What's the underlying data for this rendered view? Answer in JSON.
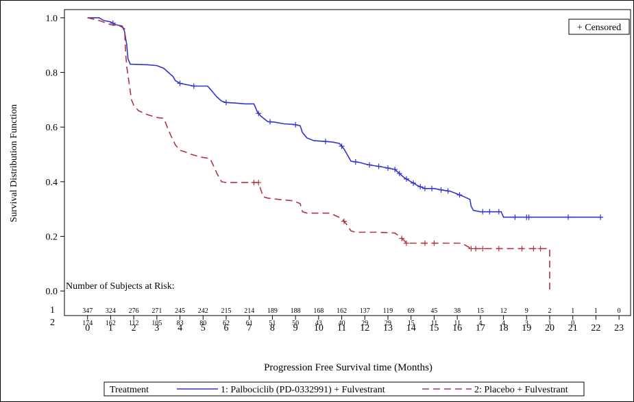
{
  "chart_data": {
    "type": "line",
    "title": "",
    "xlabel": "Progression Free Survival time (Months)",
    "ylabel": "Survival Distribution Function",
    "xlim": [
      -1,
      23.5
    ],
    "ylim": [
      -0.09,
      1.03
    ],
    "x_ticks": [
      "0",
      "1",
      "2",
      "3",
      "4",
      "5",
      "6",
      "7",
      "8",
      "9",
      "10",
      "11",
      "12",
      "13",
      "14",
      "15",
      "16",
      "17",
      "18",
      "19",
      "20",
      "21",
      "22",
      "23"
    ],
    "y_ticks": [
      "0.0",
      "0.2",
      "0.4",
      "0.6",
      "0.8",
      "1.0"
    ],
    "grid": false,
    "censored_legend": "+ Censored",
    "legend": {
      "title": "Treatment",
      "placement": "bottom",
      "items": [
        {
          "label": "1: Palbociclib (PD-0332991) + Fulvestrant",
          "color": "#3333cc",
          "style": "solid"
        },
        {
          "label": "2: Placebo + Fulvestrant",
          "color": "#b2323e",
          "style": "dashed"
        }
      ]
    },
    "series": [
      {
        "name": "1: Palbociclib (PD-0332991) + Fulvestrant",
        "color": "#3333cc",
        "dash": "solid",
        "points": [
          [
            0,
            1.0
          ],
          [
            0.5,
            1.0
          ],
          [
            0.7,
            0.99
          ],
          [
            1.0,
            0.985
          ],
          [
            1.2,
            0.975
          ],
          [
            1.5,
            0.97
          ],
          [
            1.6,
            0.95
          ],
          [
            1.7,
            0.9
          ],
          [
            1.75,
            0.85
          ],
          [
            1.85,
            0.83
          ],
          [
            2.6,
            0.828
          ],
          [
            3.0,
            0.825
          ],
          [
            3.3,
            0.815
          ],
          [
            3.5,
            0.8
          ],
          [
            3.7,
            0.785
          ],
          [
            3.8,
            0.77
          ],
          [
            4.0,
            0.76
          ],
          [
            4.3,
            0.755
          ],
          [
            4.6,
            0.75
          ],
          [
            5.2,
            0.75
          ],
          [
            5.4,
            0.73
          ],
          [
            5.6,
            0.71
          ],
          [
            5.8,
            0.695
          ],
          [
            6.0,
            0.69
          ],
          [
            6.4,
            0.688
          ],
          [
            6.8,
            0.685
          ],
          [
            7.2,
            0.685
          ],
          [
            7.35,
            0.655
          ],
          [
            7.5,
            0.64
          ],
          [
            7.8,
            0.62
          ],
          [
            8.1,
            0.618
          ],
          [
            8.5,
            0.612
          ],
          [
            8.9,
            0.61
          ],
          [
            9.2,
            0.605
          ],
          [
            9.3,
            0.58
          ],
          [
            9.5,
            0.56
          ],
          [
            9.8,
            0.55
          ],
          [
            10.2,
            0.548
          ],
          [
            10.6,
            0.545
          ],
          [
            10.9,
            0.54
          ],
          [
            11.1,
            0.52
          ],
          [
            11.3,
            0.49
          ],
          [
            11.4,
            0.475
          ],
          [
            11.8,
            0.47
          ],
          [
            12.0,
            0.465
          ],
          [
            12.3,
            0.46
          ],
          [
            12.7,
            0.455
          ],
          [
            13.0,
            0.45
          ],
          [
            13.3,
            0.445
          ],
          [
            13.5,
            0.43
          ],
          [
            13.7,
            0.415
          ],
          [
            13.9,
            0.405
          ],
          [
            14.1,
            0.395
          ],
          [
            14.3,
            0.385
          ],
          [
            14.6,
            0.375
          ],
          [
            15.0,
            0.375
          ],
          [
            15.3,
            0.37
          ],
          [
            15.7,
            0.365
          ],
          [
            16.0,
            0.355
          ],
          [
            16.3,
            0.345
          ],
          [
            16.55,
            0.335
          ],
          [
            16.6,
            0.31
          ],
          [
            16.7,
            0.295
          ],
          [
            17.0,
            0.29
          ],
          [
            17.9,
            0.29
          ],
          [
            18.0,
            0.27
          ],
          [
            22.2,
            0.27
          ]
        ],
        "censored": [
          1.1,
          4.0,
          4.6,
          6.0,
          7.4,
          7.9,
          9.0,
          10.3,
          11.0,
          11.6,
          12.2,
          12.6,
          13.0,
          13.3,
          13.5,
          13.8,
          14.1,
          14.4,
          14.6,
          14.9,
          15.3,
          15.6,
          16.1,
          17.1,
          17.4,
          17.8,
          18.5,
          19.0,
          19.1,
          20.8,
          22.2
        ]
      },
      {
        "name": "2: Placebo + Fulvestrant",
        "color": "#b2323e",
        "dash": "dashed",
        "points": [
          [
            0,
            1.0
          ],
          [
            0.5,
            0.99
          ],
          [
            1.0,
            0.975
          ],
          [
            1.4,
            0.97
          ],
          [
            1.6,
            0.96
          ],
          [
            1.65,
            0.87
          ],
          [
            1.7,
            0.82
          ],
          [
            1.8,
            0.76
          ],
          [
            1.9,
            0.7
          ],
          [
            2.0,
            0.68
          ],
          [
            2.2,
            0.66
          ],
          [
            2.6,
            0.645
          ],
          [
            3.0,
            0.635
          ],
          [
            3.3,
            0.632
          ],
          [
            3.45,
            0.6
          ],
          [
            3.6,
            0.57
          ],
          [
            3.8,
            0.535
          ],
          [
            4.0,
            0.515
          ],
          [
            4.2,
            0.51
          ],
          [
            4.5,
            0.5
          ],
          [
            4.9,
            0.49
          ],
          [
            5.3,
            0.485
          ],
          [
            5.5,
            0.45
          ],
          [
            5.6,
            0.43
          ],
          [
            5.8,
            0.4
          ],
          [
            6.0,
            0.397
          ],
          [
            7.4,
            0.397
          ],
          [
            7.5,
            0.37
          ],
          [
            7.6,
            0.345
          ],
          [
            7.8,
            0.34
          ],
          [
            8.3,
            0.335
          ],
          [
            8.9,
            0.33
          ],
          [
            9.2,
            0.32
          ],
          [
            9.3,
            0.29
          ],
          [
            9.5,
            0.285
          ],
          [
            10.5,
            0.285
          ],
          [
            11.0,
            0.265
          ],
          [
            11.2,
            0.245
          ],
          [
            11.4,
            0.22
          ],
          [
            11.6,
            0.215
          ],
          [
            12.5,
            0.215
          ],
          [
            13.3,
            0.212
          ],
          [
            13.5,
            0.2
          ],
          [
            13.7,
            0.185
          ],
          [
            13.8,
            0.175
          ],
          [
            14.5,
            0.175
          ],
          [
            16.2,
            0.175
          ],
          [
            16.6,
            0.155
          ],
          [
            20.0,
            0.155
          ],
          [
            20.0,
            0.0
          ]
        ],
        "censored": [
          7.2,
          7.4,
          11.1,
          13.6,
          13.8,
          14.6,
          15.0,
          16.6,
          16.8,
          17.1,
          17.8,
          18.8,
          19.3,
          19.6
        ]
      }
    ],
    "risk_table": {
      "title": "Number of Subjects at Risk:",
      "rows": [
        {
          "label": "1",
          "counts": [
            "347",
            "324",
            "276",
            "271",
            "245",
            "242",
            "215",
            "214",
            "189",
            "188",
            "168",
            "162",
            "137",
            "119",
            "69",
            "45",
            "38",
            "15",
            "12",
            "9",
            "2",
            "1",
            "1",
            "0"
          ]
        },
        {
          "label": "2",
          "counts": [
            "174",
            "162",
            "112",
            "105",
            "83",
            "80",
            "62",
            "61",
            "51",
            "50",
            "43",
            "40",
            "29",
            "29",
            "15",
            "11",
            "11",
            "4",
            "4",
            "3",
            "1",
            "0",
            "",
            ""
          ]
        }
      ]
    }
  }
}
